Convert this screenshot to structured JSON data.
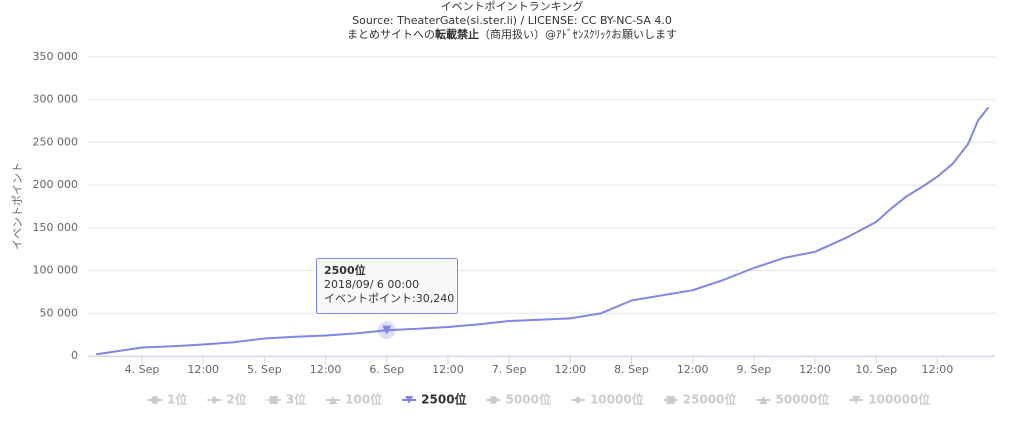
{
  "chart_data": {
    "type": "line",
    "title": "イベントポイントランキング",
    "subtitle": "Source: TheaterGate(si.ster.li) / LICENSE: CC BY-NC-SA 4.0",
    "notice": {
      "before": "まとめサイトへの",
      "bold": "転載禁止",
      "after": "（商用扱い）@ｱﾄﾞｾﾝｽｸﾘｯｸお願いします"
    },
    "y_label": "イベントポイント",
    "x": [
      "2018-09-03 15:00",
      "2018-09-04 00:00",
      "2018-09-04 06:00",
      "2018-09-04 12:00",
      "2018-09-04 18:00",
      "2018-09-05 00:00",
      "2018-09-05 06:00",
      "2018-09-05 12:00",
      "2018-09-05 18:00",
      "2018-09-06 00:00",
      "2018-09-06 06:00",
      "2018-09-06 12:00",
      "2018-09-06 18:00",
      "2018-09-07 00:00",
      "2018-09-07 06:00",
      "2018-09-07 12:00",
      "2018-09-07 18:00",
      "2018-09-08 00:00",
      "2018-09-08 06:00",
      "2018-09-08 12:00",
      "2018-09-08 18:00",
      "2018-09-09 00:00",
      "2018-09-09 06:00",
      "2018-09-09 12:00",
      "2018-09-09 18:00",
      "2018-09-10 00:00",
      "2018-09-10 03:00",
      "2018-09-10 06:00",
      "2018-09-10 09:00",
      "2018-09-10 12:00",
      "2018-09-10 15:00",
      "2018-09-10 18:00",
      "2018-09-10 20:00",
      "2018-09-10 22:00"
    ],
    "series": [
      {
        "name": "1位",
        "color": "#cccccc",
        "symbol": "circle",
        "visible": false
      },
      {
        "name": "2位",
        "color": "#cccccc",
        "symbol": "diamond",
        "visible": false
      },
      {
        "name": "3位",
        "color": "#cccccc",
        "symbol": "square",
        "visible": false
      },
      {
        "name": "100位",
        "color": "#cccccc",
        "symbol": "triangle",
        "visible": false
      },
      {
        "name": "2500位",
        "color": "#8085e9",
        "symbol": "triangle-down",
        "visible": true,
        "values": [
          2000,
          10000,
          11500,
          13500,
          16000,
          20500,
          22500,
          24000,
          26500,
          30240,
          32000,
          34000,
          37000,
          41000,
          42500,
          44000,
          50000,
          65000,
          71000,
          77000,
          89000,
          103000,
          115000,
          122000,
          138000,
          157000,
          173000,
          187000,
          198000,
          210000,
          225000,
          248000,
          276000,
          291000
        ]
      },
      {
        "name": "5000位",
        "color": "#cccccc",
        "symbol": "circle",
        "visible": false
      },
      {
        "name": "10000位",
        "color": "#cccccc",
        "symbol": "diamond",
        "visible": false
      },
      {
        "name": "25000位",
        "color": "#cccccc",
        "symbol": "square",
        "visible": false
      },
      {
        "name": "50000位",
        "color": "#cccccc",
        "symbol": "triangle",
        "visible": false
      },
      {
        "name": "100000位",
        "color": "#cccccc",
        "symbol": "triangle-down",
        "visible": false
      }
    ],
    "xlim": [
      "2018-09-03 13:24",
      "2018-09-10 23:18"
    ],
    "xticks": [
      {
        "value": "2018-09-04 00:00",
        "label": "4. Sep"
      },
      {
        "value": "2018-09-04 12:00",
        "label": "12:00"
      },
      {
        "value": "2018-09-05 00:00",
        "label": "5. Sep"
      },
      {
        "value": "2018-09-05 12:00",
        "label": "12:00"
      },
      {
        "value": "2018-09-06 00:00",
        "label": "6. Sep"
      },
      {
        "value": "2018-09-06 12:00",
        "label": "12:00"
      },
      {
        "value": "2018-09-07 00:00",
        "label": "7. Sep"
      },
      {
        "value": "2018-09-07 12:00",
        "label": "12:00"
      },
      {
        "value": "2018-09-08 00:00",
        "label": "8. Sep"
      },
      {
        "value": "2018-09-08 12:00",
        "label": "12:00"
      },
      {
        "value": "2018-09-09 00:00",
        "label": "9. Sep"
      },
      {
        "value": "2018-09-09 12:00",
        "label": "12:00"
      },
      {
        "value": "2018-09-10 00:00",
        "label": "10. Sep"
      },
      {
        "value": "2018-09-10 12:00",
        "label": "12:00"
      }
    ],
    "ylim": [
      0,
      350000
    ],
    "yticks": [
      0,
      {
        "value": 50000,
        "label": "50 000"
      },
      {
        "value": 100000,
        "label": "100 000"
      },
      {
        "value": 150000,
        "label": "150 000"
      },
      {
        "value": 200000,
        "label": "200 000"
      },
      {
        "value": 250000,
        "label": "250 000"
      },
      {
        "value": 300000,
        "label": "300 000"
      },
      {
        "value": 350000,
        "label": "350 000"
      }
    ],
    "grid": true,
    "tooltip": {
      "series": 4,
      "point": 9,
      "time": "2018/09/ 6 00:00",
      "text": "イベントポイント:30,240"
    }
  }
}
